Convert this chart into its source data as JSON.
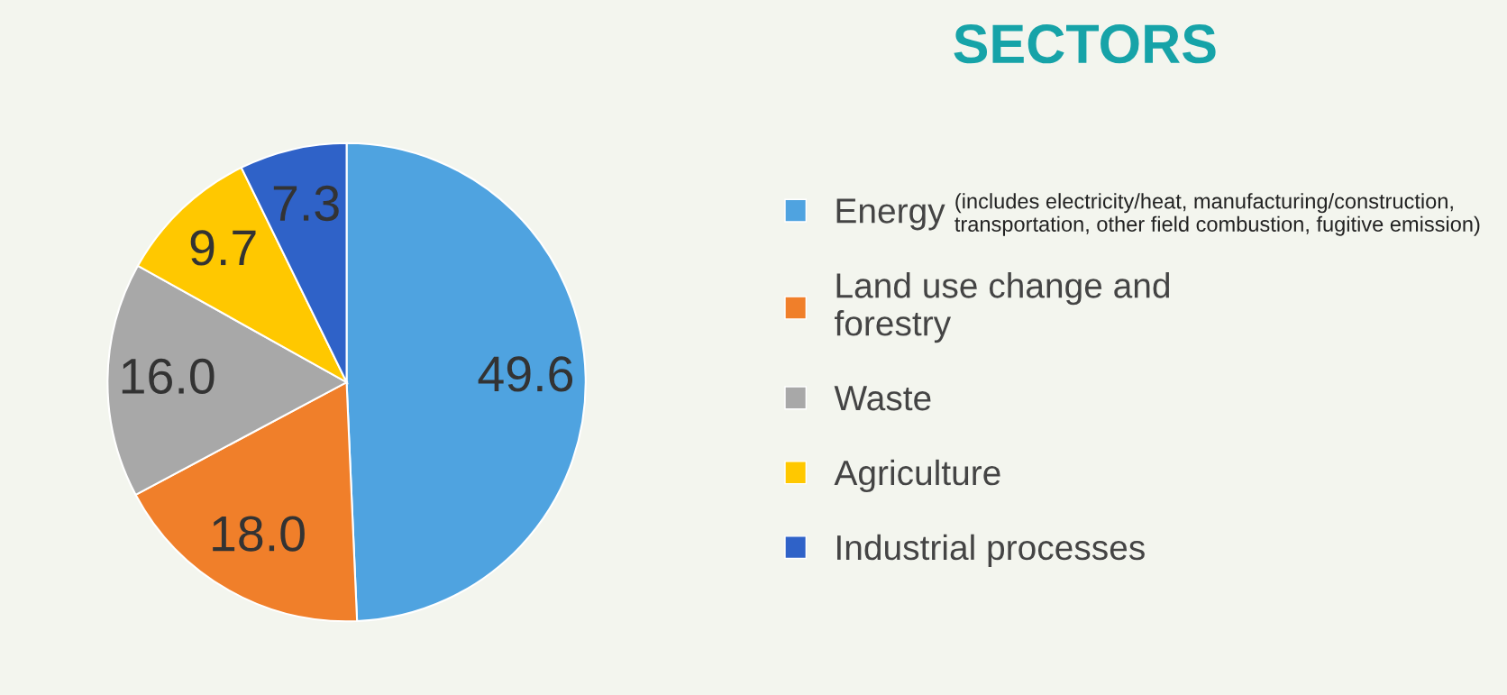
{
  "chart_data": {
    "type": "pie",
    "title": "SECTORS",
    "categories": [
      "Energy",
      "Land use change and\nforestry",
      "Waste",
      "Agriculture",
      "Industrial processes"
    ],
    "values": [
      49.6,
      18.0,
      16.0,
      9.7,
      7.3
    ],
    "colors": [
      "#4fa3e0",
      "#f07f2a",
      "#a8a8a8",
      "#ffc800",
      "#2f62c8"
    ],
    "value_labels": [
      "49.6",
      "18.0",
      "16.0",
      "9.7",
      "7.3"
    ],
    "legend": "right",
    "annotations": [
      "(includes electricity/heat, manufacturing/construction,\ntransportation, other field combustion, fugitive emission)"
    ]
  }
}
